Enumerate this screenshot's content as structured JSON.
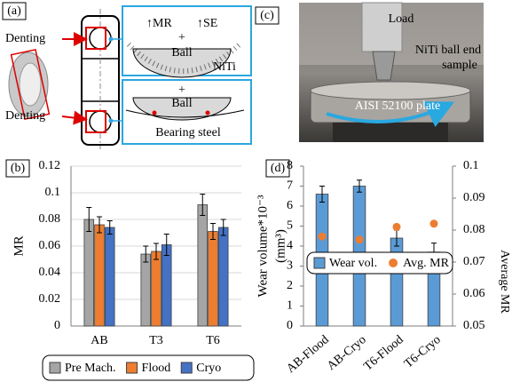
{
  "panel_a": {
    "label": "(a)",
    "denting_top": "Denting",
    "denting_bottom": "Denting",
    "top_box": {
      "mr": "↑MR",
      "se": "↑SE",
      "plus": "+",
      "ball": "Ball",
      "material": "NiTi"
    },
    "bottom_box": {
      "plus": "+",
      "ball": "Ball",
      "material": "Bearing steel"
    }
  },
  "panel_c": {
    "label": "(c)",
    "load": "Load",
    "sample": [
      "NiTi ball end",
      "sample"
    ],
    "plate": "AISI 52100 plate"
  },
  "chart_data": [
    {
      "type": "bar",
      "panel_label": "(b)",
      "ylabel": "MR",
      "categories": [
        "AB",
        "T3",
        "T6"
      ],
      "series": [
        {
          "name": "Pre Mach.",
          "color": "#a5a5a5",
          "values": [
            0.08,
            0.054,
            0.091
          ],
          "errors": [
            0.009,
            0.006,
            0.008
          ]
        },
        {
          "name": "Flood",
          "color": "#ed7d31",
          "values": [
            0.076,
            0.056,
            0.071
          ],
          "errors": [
            0.006,
            0.006,
            0.006
          ]
        },
        {
          "name": "Cryo",
          "color": "#4472c4",
          "values": [
            0.074,
            0.061,
            0.074
          ],
          "errors": [
            0.005,
            0.008,
            0.006
          ]
        }
      ],
      "ylim": [
        0,
        0.12
      ],
      "yticks": [
        0,
        0.02,
        0.04,
        0.06,
        0.08,
        0.1,
        0.12
      ],
      "grid": true,
      "legend": "bottom"
    },
    {
      "type": "bar",
      "panel_label": "(d)",
      "ylabel": [
        "Wear volume*10⁻³",
        "(mm³)"
      ],
      "y2label": "Average MR",
      "categories": [
        "AB-Flood",
        "AB-Cryo",
        "T6-Flood",
        "T6-Cryo"
      ],
      "series": [
        {
          "name": "Wear vol.",
          "color": "#5b9bd5",
          "values": [
            6.6,
            7.0,
            4.4,
            3.7
          ],
          "errors": [
            0.4,
            0.3,
            0.4,
            0.45
          ]
        },
        {
          "name": "Avg. MR",
          "color": "#ed7d31",
          "values": [
            0.078,
            0.077,
            0.081,
            0.082
          ],
          "axis": "y2",
          "kind": "scatter"
        }
      ],
      "ylim": [
        0,
        8
      ],
      "yticks": [
        0,
        1,
        2,
        3,
        4,
        5,
        6,
        7,
        8
      ],
      "y2lim": [
        0.05,
        0.1
      ],
      "y2ticks": [
        0.05,
        0.06,
        0.07,
        0.08,
        0.09,
        0.1
      ],
      "grid": false,
      "legend": "center"
    }
  ]
}
